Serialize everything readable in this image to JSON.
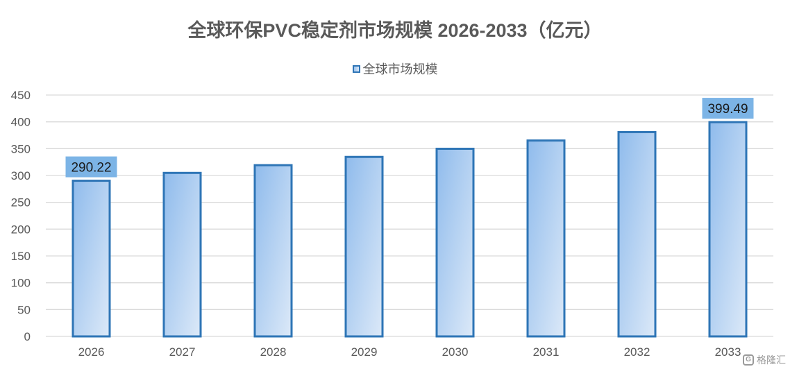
{
  "chart_data": {
    "type": "bar",
    "title": "全球环保PVC稳定剂市场规模 2026-2033（亿元）",
    "categories": [
      "2026",
      "2027",
      "2028",
      "2029",
      "2030",
      "2031",
      "2032",
      "2033"
    ],
    "series": [
      {
        "name": "全球市场规模",
        "values": [
          290.22,
          304.8,
          319.2,
          334.6,
          349.8,
          365.2,
          380.9,
          399.49
        ]
      }
    ],
    "data_labels": [
      {
        "category": "2026",
        "text": "290.22"
      },
      {
        "category": "2033",
        "text": "399.49"
      }
    ],
    "ylim": [
      0,
      450
    ],
    "yticks": [
      "0",
      "50",
      "100",
      "150",
      "200",
      "250",
      "300",
      "350",
      "400",
      "450"
    ],
    "xlabel": "",
    "ylabel": "",
    "grid": true,
    "legend_position": "top-center",
    "colors": {
      "bar_fill_start": "#8fbbec",
      "bar_fill_end": "#dce9f8",
      "bar_border": "#2e75b6",
      "label_box": "#7cb4e6",
      "grid": "#d9d9d9",
      "axis_text": "#595959"
    }
  },
  "watermark": {
    "text": "格隆汇",
    "logo_letter": "G"
  }
}
